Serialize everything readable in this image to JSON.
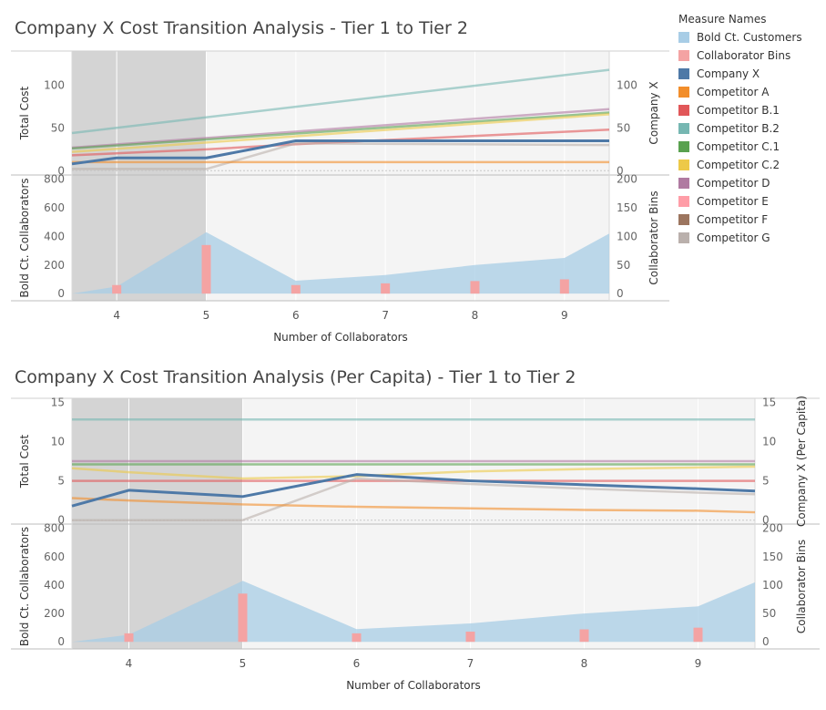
{
  "colors": {
    "Bold Ct. Customers": "#a8cde6",
    "Collaborator Bins": "#f4a3a3",
    "Company X": "#4e79a7",
    "Competitor A": "#f28e2b",
    "Competitor B.1": "#e15759",
    "Competitor B.2": "#76b7b2",
    "Competitor C.1": "#59a14f",
    "Competitor C.2": "#edc948",
    "Competitor D": "#b07aa1",
    "Competitor E": "#ff9da7",
    "Competitor F": "#9c755f",
    "Competitor G": "#bab0ac"
  },
  "legend": {
    "title": "Measure Names",
    "items": [
      "Bold Ct. Customers",
      "Collaborator Bins",
      "Company X",
      "Competitor A",
      "Competitor B.1",
      "Competitor B.2",
      "Competitor C.1",
      "Competitor C.2",
      "Competitor D",
      "Competitor E",
      "Competitor F",
      "Competitor G"
    ]
  },
  "chart_data": [
    {
      "type": "line",
      "title": "Company X Cost Transition Analysis - Tier 1 to Tier 2",
      "xlabel": "Number of Collaborators",
      "x_ticks": [
        4,
        5,
        6,
        7,
        8,
        9
      ],
      "x_range": [
        3.5,
        9.5
      ],
      "highlight_range": [
        3.5,
        5
      ],
      "top_panel": {
        "ylabel_left": "Total Cost",
        "ylabel_right": "Company X",
        "ylim": [
          -5,
          140
        ],
        "ticks": [
          0,
          50,
          100
        ],
        "series": [
          {
            "name": "Competitor B.2",
            "x": [
              3.5,
              9.5
            ],
            "values": [
              44,
              118
            ]
          },
          {
            "name": "Competitor D",
            "x": [
              3.5,
              9.5
            ],
            "values": [
              27,
              72
            ]
          },
          {
            "name": "Competitor C.1",
            "x": [
              3.5,
              9.5
            ],
            "values": [
              26,
              68
            ]
          },
          {
            "name": "Competitor C.2",
            "x": [
              3.5,
              9.5
            ],
            "values": [
              22,
              66
            ]
          },
          {
            "name": "Competitor B.1",
            "x": [
              3.5,
              5,
              6,
              9.5
            ],
            "values": [
              18,
              25,
              31,
              48
            ]
          },
          {
            "name": "Competitor G",
            "x": [
              3.5,
              5,
              6,
              9.5
            ],
            "values": [
              2,
              2,
              32,
              30
            ]
          },
          {
            "name": "Competitor A",
            "x": [
              3.5,
              9.5
            ],
            "values": [
              10,
              10
            ]
          },
          {
            "name": "Company X",
            "x": [
              3.5,
              4,
              5,
              6,
              9.5
            ],
            "values": [
              8,
              15,
              15,
              35,
              35
            ]
          }
        ]
      },
      "bottom_panel": {
        "ylabel_left": "Bold Ct. Collaborators",
        "ylabel_right": "Collaborator Bins",
        "ylim_left": [
          -50,
          830
        ],
        "ticks_left": [
          0,
          200,
          400,
          600,
          800
        ],
        "ylim_right": [
          -12.5,
          207.5
        ],
        "ticks_right": [
          0,
          50,
          100,
          150,
          200
        ],
        "area": {
          "name": "Bold Ct. Customers",
          "x": [
            3.5,
            4,
            5,
            6,
            7,
            8,
            9,
            9.5
          ],
          "values": [
            0,
            50,
            430,
            90,
            130,
            200,
            250,
            420
          ]
        },
        "bars": {
          "name": "Collaborator Bins",
          "x": [
            4,
            5,
            6,
            7,
            8,
            9
          ],
          "values": [
            15,
            85,
            15,
            18,
            22,
            25
          ]
        }
      }
    },
    {
      "type": "line",
      "title": "Company X Cost Transition Analysis (Per Capita) - Tier 1 to Tier 2",
      "xlabel": "Number of Collaborators",
      "x_ticks": [
        4,
        5,
        6,
        7,
        8,
        9
      ],
      "x_range": [
        3.5,
        9.5
      ],
      "highlight_range": [
        3.5,
        5
      ],
      "top_panel": {
        "ylabel_left": "Total Cost",
        "ylabel_right": "Company X (Per Capita)",
        "ylim": [
          -0.5,
          15.5
        ],
        "ticks": [
          0,
          5,
          10,
          15
        ],
        "series": [
          {
            "name": "Competitor B.2",
            "x": [
              3.5,
              9.5
            ],
            "values": [
              12.8,
              12.8
            ]
          },
          {
            "name": "Competitor D",
            "x": [
              3.5,
              9.5
            ],
            "values": [
              7.5,
              7.5
            ]
          },
          {
            "name": "Competitor C.1",
            "x": [
              3.5,
              9.5
            ],
            "values": [
              7.1,
              7.1
            ]
          },
          {
            "name": "Competitor C.2",
            "x": [
              3.5,
              4,
              5,
              6,
              7,
              8,
              9,
              9.5
            ],
            "values": [
              6.6,
              6.1,
              5.3,
              5.6,
              6.2,
              6.5,
              6.7,
              6.8
            ]
          },
          {
            "name": "Competitor B.1",
            "x": [
              3.5,
              9.5
            ],
            "values": [
              5,
              5
            ]
          },
          {
            "name": "Competitor G",
            "x": [
              3.5,
              5,
              6,
              7,
              8,
              9,
              9.5
            ],
            "values": [
              0,
              0,
              5.3,
              4.6,
              4,
              3.5,
              3.3
            ]
          },
          {
            "name": "Competitor A",
            "x": [
              3.5,
              4,
              5,
              6,
              7,
              8,
              9,
              9.5
            ],
            "values": [
              2.8,
              2.5,
              2,
              1.7,
              1.5,
              1.3,
              1.2,
              1
            ]
          },
          {
            "name": "Company X",
            "x": [
              3.5,
              4,
              5,
              6,
              7,
              8,
              9,
              9.5
            ],
            "values": [
              1.8,
              3.8,
              3,
              5.8,
              5,
              4.5,
              4,
              3.7
            ]
          }
        ]
      },
      "bottom_panel": {
        "ylabel_left": "Bold Ct. Collaborators",
        "ylabel_right": "Collaborator Bins",
        "ylim_left": [
          -50,
          830
        ],
        "ticks_left": [
          0,
          200,
          400,
          600,
          800
        ],
        "ylim_right": [
          -12.5,
          207.5
        ],
        "ticks_right": [
          0,
          50,
          100,
          150,
          200
        ],
        "area": {
          "name": "Bold Ct. Customers",
          "x": [
            3.5,
            4,
            5,
            6,
            7,
            8,
            9,
            9.5
          ],
          "values": [
            0,
            50,
            430,
            90,
            130,
            200,
            250,
            420
          ]
        },
        "bars": {
          "name": "Collaborator Bins",
          "x": [
            4,
            5,
            6,
            7,
            8,
            9
          ],
          "values": [
            15,
            85,
            15,
            18,
            22,
            25
          ]
        }
      }
    }
  ]
}
